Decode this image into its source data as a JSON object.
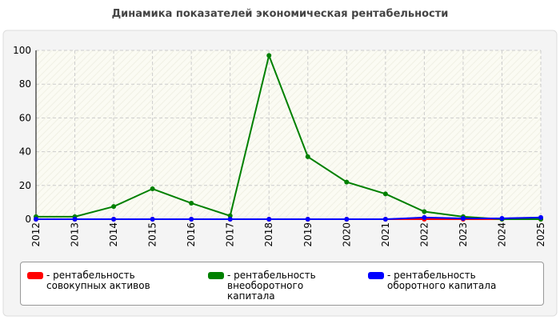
{
  "chart_data": {
    "type": "line",
    "title": "Динамика показателей экономическая рентабельности",
    "categories": [
      "2012",
      "2013",
      "2014",
      "2015",
      "2016",
      "2017",
      "2018",
      "2019",
      "2020",
      "2021",
      "2022",
      "2023",
      "2024",
      "2025"
    ],
    "series": [
      {
        "name": "- рентабельность совокупных активов",
        "color": "#ff0000",
        "values": [
          0,
          0,
          0,
          0,
          0,
          0,
          0,
          0,
          0,
          0,
          0,
          0,
          0,
          0
        ]
      },
      {
        "name": "- рентабельность внеоборотного капитала",
        "color": "#008000",
        "values": [
          1.5,
          1.5,
          7.5,
          18,
          9.5,
          2,
          97,
          37,
          22,
          15,
          4.5,
          1.5,
          0,
          0
        ]
      },
      {
        "name": "- рентабельность оборотного капитала",
        "color": "#0000ff",
        "values": [
          0,
          0,
          0,
          0,
          0,
          0,
          0,
          0,
          0,
          0,
          1,
          0.5,
          0.5,
          1
        ]
      }
    ],
    "ylim": [
      0,
      100
    ],
    "yticks": [
      0,
      20,
      40,
      60,
      80,
      100
    ],
    "grid": true
  }
}
